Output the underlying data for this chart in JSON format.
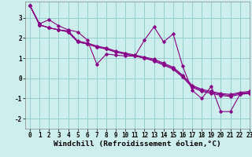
{
  "xlabel": "Windchill (Refroidissement éolien,°C)",
  "ylabel": "",
  "background_color": "#cceeed",
  "line_color": "#880088",
  "grid_color": "#99cccc",
  "xlim": [
    -0.5,
    23
  ],
  "ylim": [
    -2.5,
    3.8
  ],
  "xticks": [
    0,
    1,
    2,
    3,
    4,
    5,
    6,
    7,
    8,
    9,
    10,
    11,
    12,
    13,
    14,
    15,
    16,
    17,
    18,
    19,
    20,
    21,
    22,
    23
  ],
  "yticks": [
    -2,
    -1,
    0,
    1,
    2,
    3
  ],
  "series": [
    [
      3.6,
      2.7,
      2.9,
      2.6,
      2.4,
      2.3,
      1.9,
      0.7,
      1.2,
      1.15,
      1.1,
      1.1,
      1.9,
      2.55,
      1.8,
      2.2,
      0.6,
      -0.6,
      -1.0,
      -0.4,
      -1.65,
      -1.65,
      -0.8,
      -0.7
    ],
    [
      3.6,
      2.65,
      2.5,
      2.4,
      2.3,
      1.8,
      1.7,
      1.55,
      1.45,
      1.3,
      1.2,
      1.1,
      1.0,
      0.9,
      0.7,
      0.5,
      0.1,
      -0.4,
      -0.6,
      -0.7,
      -0.8,
      -0.85,
      -0.75,
      -0.7
    ],
    [
      3.6,
      2.65,
      2.5,
      2.4,
      2.35,
      1.85,
      1.75,
      1.6,
      1.5,
      1.35,
      1.25,
      1.15,
      1.05,
      0.95,
      0.75,
      0.55,
      0.15,
      -0.35,
      -0.55,
      -0.65,
      -0.75,
      -0.8,
      -0.7,
      -0.65
    ],
    [
      3.6,
      2.65,
      2.5,
      2.4,
      2.3,
      1.8,
      1.7,
      1.55,
      1.45,
      1.3,
      1.2,
      1.1,
      1.0,
      0.85,
      0.65,
      0.45,
      0.05,
      -0.45,
      -0.65,
      -0.75,
      -0.85,
      -0.9,
      -0.8,
      -0.75
    ]
  ],
  "tick_fontsize": 5.5,
  "xlabel_fontsize": 6.8
}
